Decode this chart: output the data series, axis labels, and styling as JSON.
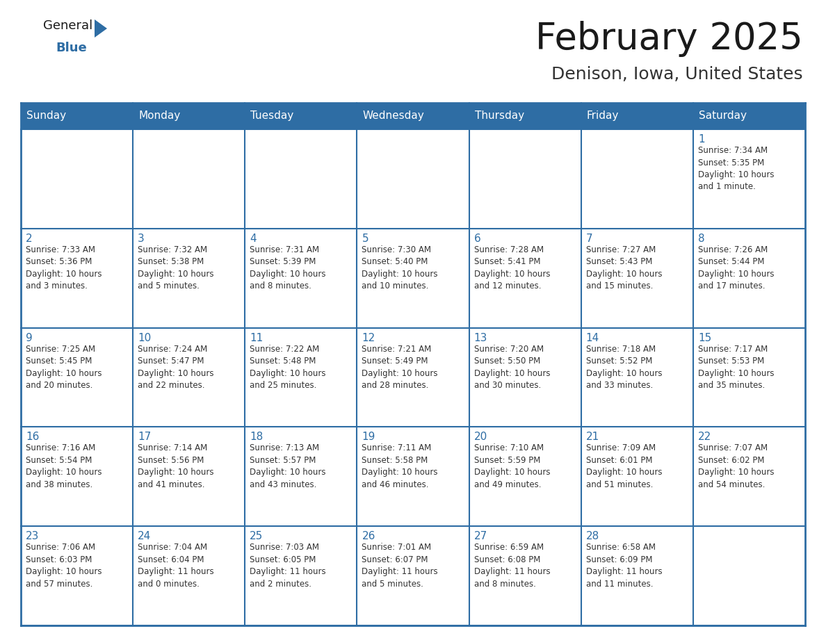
{
  "title": "February 2025",
  "subtitle": "Denison, Iowa, United States",
  "header_bg_color": "#2E6DA4",
  "header_text_color": "#FFFFFF",
  "cell_bg_color": "#FFFFFF",
  "cell_text_color": "#333333",
  "day_num_color": "#2E6DA4",
  "border_color": "#2E6DA4",
  "grid_line_color": "#AAAAAA",
  "days_of_week": [
    "Sunday",
    "Monday",
    "Tuesday",
    "Wednesday",
    "Thursday",
    "Friday",
    "Saturday"
  ],
  "weeks": [
    [
      {
        "day": "",
        "info": ""
      },
      {
        "day": "",
        "info": ""
      },
      {
        "day": "",
        "info": ""
      },
      {
        "day": "",
        "info": ""
      },
      {
        "day": "",
        "info": ""
      },
      {
        "day": "",
        "info": ""
      },
      {
        "day": "1",
        "info": "Sunrise: 7:34 AM\nSunset: 5:35 PM\nDaylight: 10 hours\nand 1 minute."
      }
    ],
    [
      {
        "day": "2",
        "info": "Sunrise: 7:33 AM\nSunset: 5:36 PM\nDaylight: 10 hours\nand 3 minutes."
      },
      {
        "day": "3",
        "info": "Sunrise: 7:32 AM\nSunset: 5:38 PM\nDaylight: 10 hours\nand 5 minutes."
      },
      {
        "day": "4",
        "info": "Sunrise: 7:31 AM\nSunset: 5:39 PM\nDaylight: 10 hours\nand 8 minutes."
      },
      {
        "day": "5",
        "info": "Sunrise: 7:30 AM\nSunset: 5:40 PM\nDaylight: 10 hours\nand 10 minutes."
      },
      {
        "day": "6",
        "info": "Sunrise: 7:28 AM\nSunset: 5:41 PM\nDaylight: 10 hours\nand 12 minutes."
      },
      {
        "day": "7",
        "info": "Sunrise: 7:27 AM\nSunset: 5:43 PM\nDaylight: 10 hours\nand 15 minutes."
      },
      {
        "day": "8",
        "info": "Sunrise: 7:26 AM\nSunset: 5:44 PM\nDaylight: 10 hours\nand 17 minutes."
      }
    ],
    [
      {
        "day": "9",
        "info": "Sunrise: 7:25 AM\nSunset: 5:45 PM\nDaylight: 10 hours\nand 20 minutes."
      },
      {
        "day": "10",
        "info": "Sunrise: 7:24 AM\nSunset: 5:47 PM\nDaylight: 10 hours\nand 22 minutes."
      },
      {
        "day": "11",
        "info": "Sunrise: 7:22 AM\nSunset: 5:48 PM\nDaylight: 10 hours\nand 25 minutes."
      },
      {
        "day": "12",
        "info": "Sunrise: 7:21 AM\nSunset: 5:49 PM\nDaylight: 10 hours\nand 28 minutes."
      },
      {
        "day": "13",
        "info": "Sunrise: 7:20 AM\nSunset: 5:50 PM\nDaylight: 10 hours\nand 30 minutes."
      },
      {
        "day": "14",
        "info": "Sunrise: 7:18 AM\nSunset: 5:52 PM\nDaylight: 10 hours\nand 33 minutes."
      },
      {
        "day": "15",
        "info": "Sunrise: 7:17 AM\nSunset: 5:53 PM\nDaylight: 10 hours\nand 35 minutes."
      }
    ],
    [
      {
        "day": "16",
        "info": "Sunrise: 7:16 AM\nSunset: 5:54 PM\nDaylight: 10 hours\nand 38 minutes."
      },
      {
        "day": "17",
        "info": "Sunrise: 7:14 AM\nSunset: 5:56 PM\nDaylight: 10 hours\nand 41 minutes."
      },
      {
        "day": "18",
        "info": "Sunrise: 7:13 AM\nSunset: 5:57 PM\nDaylight: 10 hours\nand 43 minutes."
      },
      {
        "day": "19",
        "info": "Sunrise: 7:11 AM\nSunset: 5:58 PM\nDaylight: 10 hours\nand 46 minutes."
      },
      {
        "day": "20",
        "info": "Sunrise: 7:10 AM\nSunset: 5:59 PM\nDaylight: 10 hours\nand 49 minutes."
      },
      {
        "day": "21",
        "info": "Sunrise: 7:09 AM\nSunset: 6:01 PM\nDaylight: 10 hours\nand 51 minutes."
      },
      {
        "day": "22",
        "info": "Sunrise: 7:07 AM\nSunset: 6:02 PM\nDaylight: 10 hours\nand 54 minutes."
      }
    ],
    [
      {
        "day": "23",
        "info": "Sunrise: 7:06 AM\nSunset: 6:03 PM\nDaylight: 10 hours\nand 57 minutes."
      },
      {
        "day": "24",
        "info": "Sunrise: 7:04 AM\nSunset: 6:04 PM\nDaylight: 11 hours\nand 0 minutes."
      },
      {
        "day": "25",
        "info": "Sunrise: 7:03 AM\nSunset: 6:05 PM\nDaylight: 11 hours\nand 2 minutes."
      },
      {
        "day": "26",
        "info": "Sunrise: 7:01 AM\nSunset: 6:07 PM\nDaylight: 11 hours\nand 5 minutes."
      },
      {
        "day": "27",
        "info": "Sunrise: 6:59 AM\nSunset: 6:08 PM\nDaylight: 11 hours\nand 8 minutes."
      },
      {
        "day": "28",
        "info": "Sunrise: 6:58 AM\nSunset: 6:09 PM\nDaylight: 11 hours\nand 11 minutes."
      },
      {
        "day": "",
        "info": ""
      }
    ]
  ],
  "logo_general_color": "#1a1a1a",
  "logo_blue_color": "#2E6DA4",
  "logo_triangle_color": "#2E6DA4",
  "title_fontsize": 38,
  "subtitle_fontsize": 18,
  "header_fontsize": 11,
  "day_num_fontsize": 11,
  "cell_info_fontsize": 8.5
}
